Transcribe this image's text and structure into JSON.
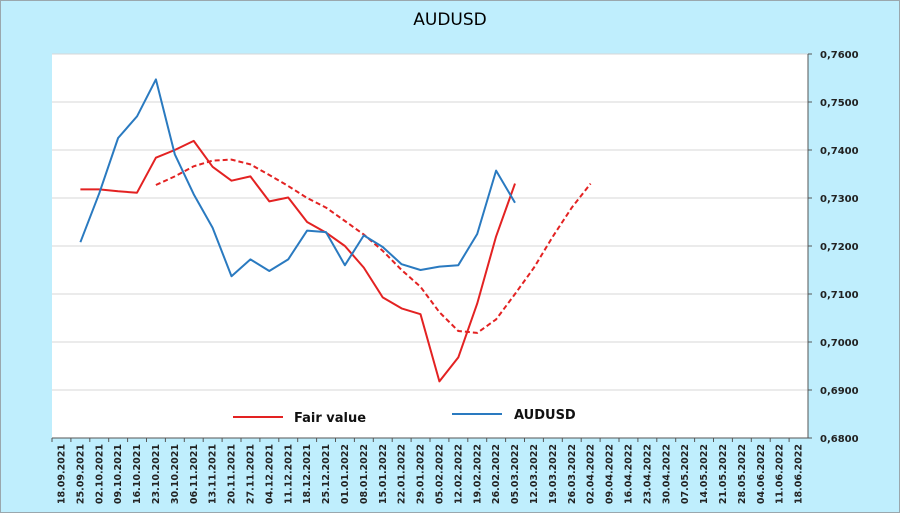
{
  "chart_data": {
    "type": "line",
    "title": "AUDUSD",
    "xlabel": "",
    "ylabel": "",
    "ylim": [
      0.68,
      0.76
    ],
    "y_axis_position": "right",
    "y_ticks": [
      "0,7600",
      "0,7500",
      "0,7400",
      "0,7300",
      "0,7200",
      "0,7100",
      "0,7000",
      "0,6900",
      "0,6800"
    ],
    "grid": true,
    "legend_position": "bottom-center",
    "x": [
      "18.09.2021",
      "25.09.2021",
      "02.10.2021",
      "09.10.2021",
      "16.10.2021",
      "23.10.2021",
      "30.10.2021",
      "06.11.2021",
      "13.11.2021",
      "20.11.2021",
      "27.11.2021",
      "04.12.2021",
      "11.12.2021",
      "18.12.2021",
      "25.12.2021",
      "01.01.2022",
      "08.01.2022",
      "15.01.2022",
      "22.01.2022",
      "29.01.2022",
      "05.02.2022",
      "12.02.2022",
      "19.02.2022",
      "26.02.2022",
      "05.03.2022",
      "12.03.2022",
      "19.03.2022",
      "26.03.2022",
      "02.04.2022",
      "09.04.2022",
      "16.04.2022",
      "23.04.2022",
      "30.04.2022",
      "07.05.2022",
      "14.05.2022",
      "21.05.2022",
      "28.05.2022",
      "04.06.2022",
      "11.06.2022",
      "18.06.2022"
    ],
    "series": [
      {
        "name": "Fair value",
        "color": "#e32222",
        "style": "solid",
        "values": [
          null,
          0.7318,
          0.7318,
          0.7314,
          0.7311,
          0.7384,
          0.74,
          0.7419,
          0.7365,
          0.7336,
          0.7345,
          0.7293,
          0.7301,
          0.725,
          0.7228,
          0.72,
          0.7155,
          0.7093,
          0.707,
          0.7058,
          0.6918,
          0.6968,
          0.708,
          0.722,
          0.733,
          null,
          null,
          null,
          null,
          null,
          null,
          null,
          null,
          null,
          null,
          null,
          null,
          null,
          null,
          null
        ]
      },
      {
        "name": "",
        "color": "#e32222",
        "style": "dashed",
        "values": [
          null,
          null,
          null,
          null,
          null,
          0.7327,
          0.7345,
          0.7366,
          0.7378,
          0.738,
          0.737,
          0.7348,
          0.7325,
          0.73,
          0.728,
          0.7252,
          0.7224,
          0.719,
          0.715,
          0.7115,
          0.7062,
          0.7023,
          0.7019,
          0.7047,
          0.71,
          0.7155,
          0.722,
          0.728,
          0.733,
          null,
          null,
          null,
          null,
          null,
          null,
          null,
          null,
          null,
          null,
          null
        ]
      },
      {
        "name": "AUDUSD",
        "color": "#2a7ac0",
        "style": "solid",
        "values": [
          null,
          0.7208,
          0.731,
          0.7425,
          0.747,
          0.7547,
          0.7391,
          0.7308,
          0.7238,
          0.7137,
          0.7172,
          0.7148,
          0.7172,
          0.7232,
          0.7229,
          0.716,
          0.7222,
          0.7198,
          0.7162,
          0.715,
          0.7157,
          0.716,
          0.7225,
          0.7357,
          0.729,
          null,
          null,
          null,
          null,
          null,
          null,
          null,
          null,
          null,
          null,
          null,
          null,
          null,
          null,
          null
        ]
      }
    ]
  }
}
